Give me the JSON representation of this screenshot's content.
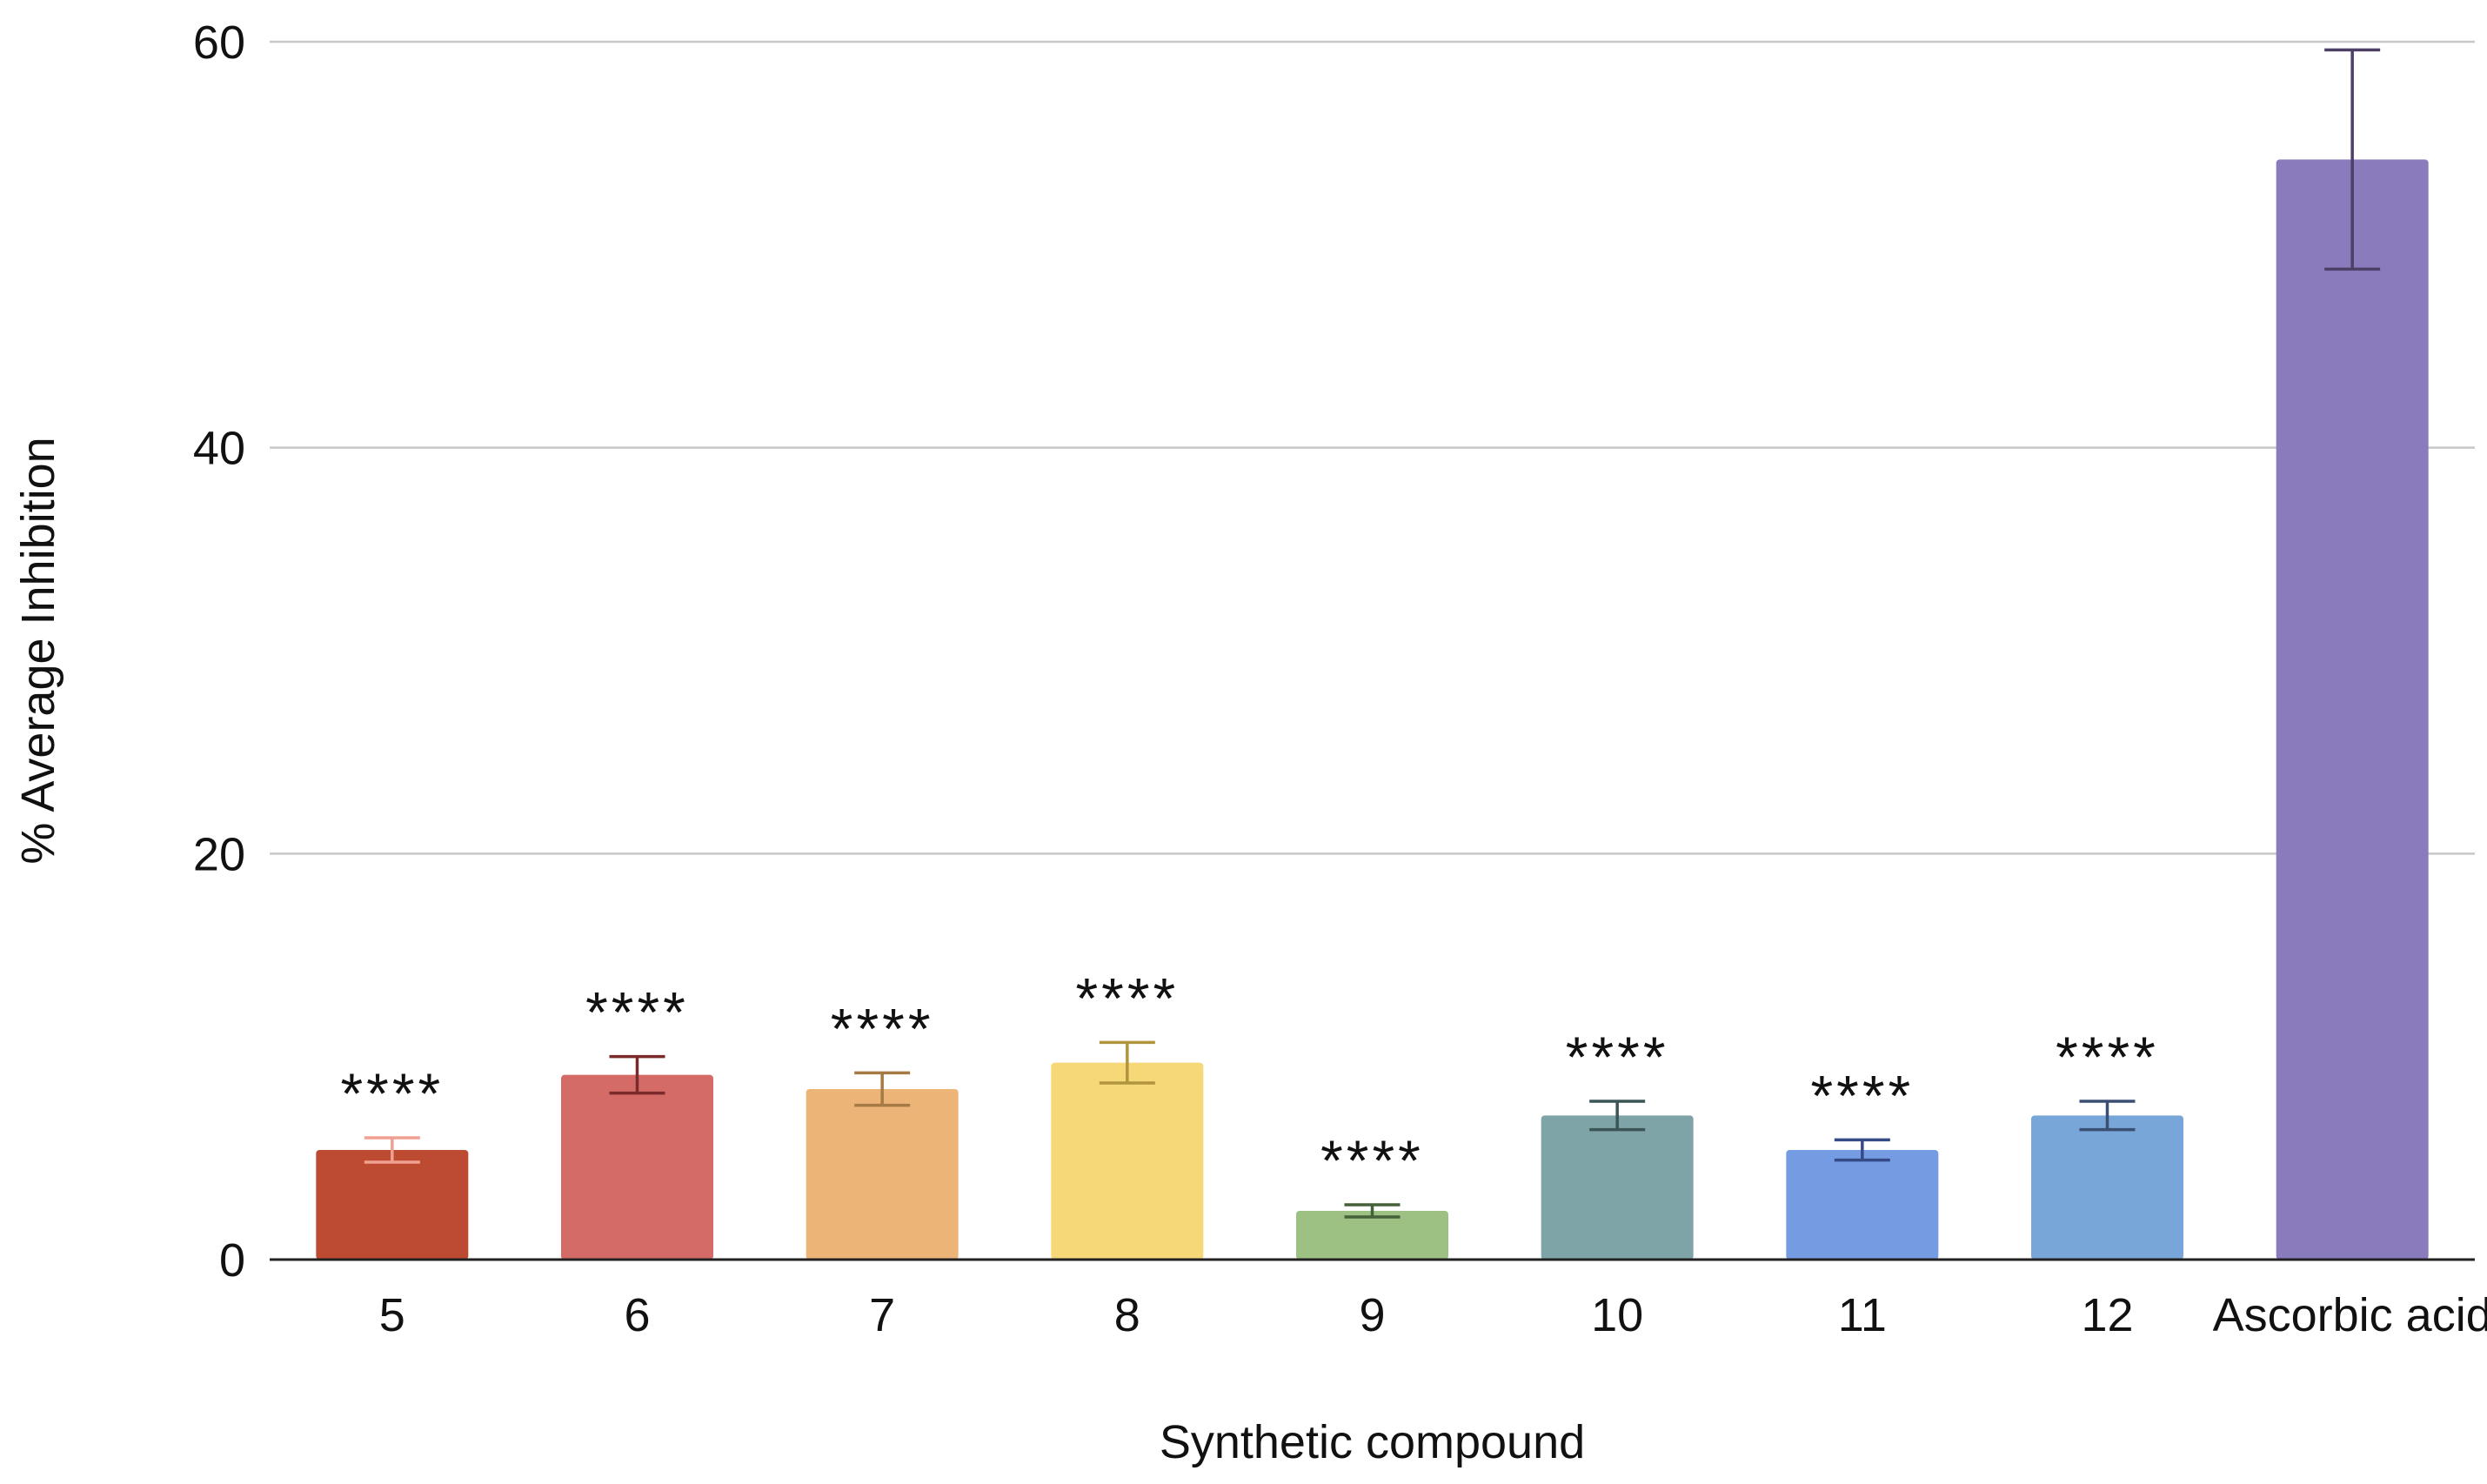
{
  "chart_data": {
    "type": "bar",
    "title": "",
    "xlabel": "Synthetic compound",
    "ylabel": "% Average Inhibition",
    "ylim": [
      0,
      60
    ],
    "yticks": [
      0,
      20,
      40,
      60
    ],
    "grid": true,
    "legend": "none",
    "categories": [
      "5",
      "6",
      "7",
      "8",
      "9",
      "10",
      "11",
      "12",
      "Ascorbic acid"
    ],
    "values": [
      5.4,
      9.1,
      8.4,
      9.7,
      2.4,
      7.1,
      5.4,
      7.1,
      54.2
    ],
    "error": [
      0.6,
      0.9,
      0.8,
      1.0,
      0.3,
      0.7,
      0.5,
      0.7,
      5.4
    ],
    "significance": [
      "****",
      "****",
      "****",
      "****",
      "****",
      "****",
      "****",
      "****",
      ""
    ],
    "colors": [
      "#bd4b31",
      "#d46b67",
      "#edb478",
      "#f7d878",
      "#9dc183",
      "#7fa4a8",
      "#759ce2",
      "#79a6d8",
      "#8a7bbd"
    ],
    "error_colors": [
      "#f0a090",
      "#7a2a2a",
      "#a57a45",
      "#b0953e",
      "#45613a",
      "#3c5557",
      "#354a86",
      "#3b4f72",
      "#4d3f66"
    ]
  }
}
